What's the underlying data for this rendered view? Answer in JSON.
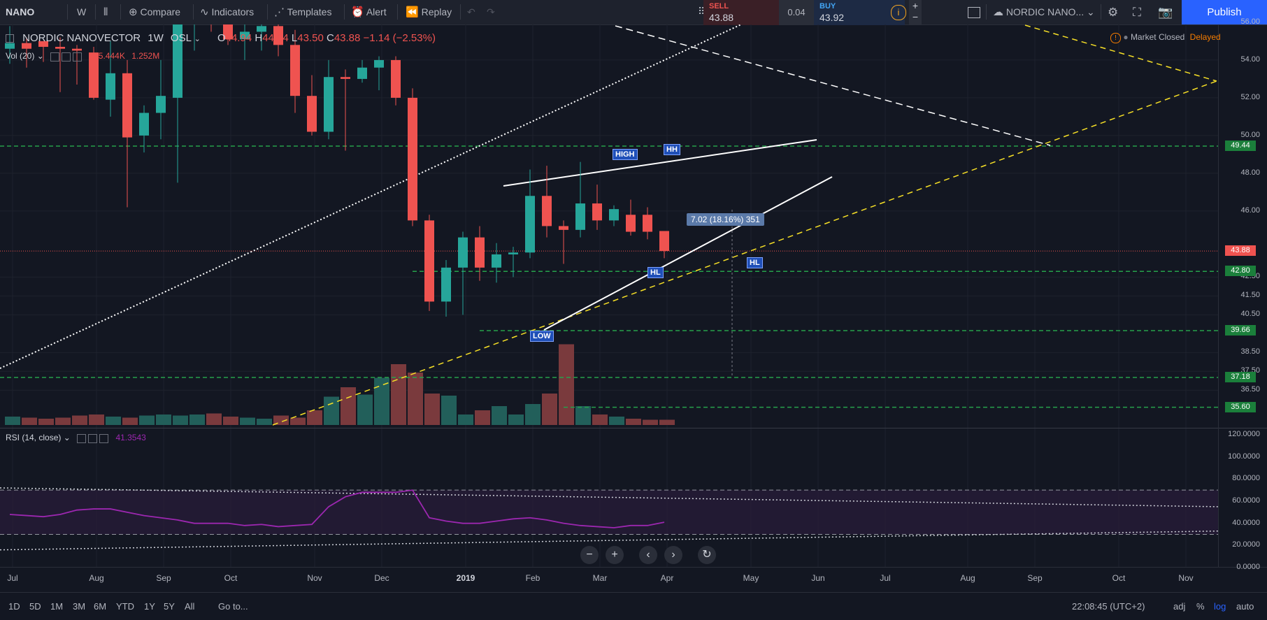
{
  "toolbar": {
    "symbol": "NANO",
    "interval": "W",
    "compare": "Compare",
    "indicators": "Indicators",
    "templates": "Templates",
    "alert": "Alert",
    "replay": "Replay",
    "symbol_search": "NORDIC NANO...",
    "publish": "Publish"
  },
  "trade": {
    "sell_label": "SELL",
    "sell_price": "43.88",
    "spread": "0.04",
    "buy_label": "BUY",
    "buy_price": "43.92"
  },
  "legend": {
    "name": "NORDIC NANOVECTOR",
    "interval": "1W",
    "exchange": "OSL",
    "open_l": "O",
    "open": "44.94",
    "high_l": "H",
    "high": "44.94",
    "low_l": "L",
    "low": "43.50",
    "close_l": "C",
    "close": "43.88",
    "change": "−1.14 (−2.53%)",
    "vol_label": "Vol (20)",
    "vol_value": "265.444K",
    "vol_ma": "1.252M",
    "market_status": "Market Closed",
    "delayed": "Delayed",
    "rsi_label": "RSI (14, close)",
    "rsi_value": "41.3543"
  },
  "price_axis": [
    "56.00",
    "54.00",
    "52.00",
    "50.00",
    "48.00",
    "46.00",
    "42.50",
    "41.50",
    "40.50",
    "38.50",
    "37.50",
    "36.50"
  ],
  "price_tags": [
    {
      "v": "49.44",
      "color": "#1b7f3b"
    },
    {
      "v": "43.88",
      "color": "#ef5350"
    },
    {
      "v": "42.80",
      "color": "#1b7f3b"
    },
    {
      "v": "39.66",
      "color": "#1b7f3b"
    },
    {
      "v": "37.18",
      "color": "#1b7f3b"
    },
    {
      "v": "35.60",
      "color": "#1b7f3b"
    }
  ],
  "rsi_axis": [
    "120.0000",
    "100.0000",
    "80.0000",
    "60.0000",
    "40.0000",
    "20.0000",
    "0.0000"
  ],
  "time_axis": [
    "Jul",
    "Aug",
    "Sep",
    "Oct",
    "Nov",
    "Dec",
    "2019",
    "Feb",
    "Mar",
    "Apr",
    "May",
    "Jun",
    "Jul",
    "Aug",
    "Sep",
    "Oct",
    "Nov"
  ],
  "annotations": {
    "high": "HIGH",
    "hh": "HH",
    "hl1": "HL",
    "hl2": "HL",
    "low": "LOW",
    "measure": "7.02 (18.16%) 351"
  },
  "bottom": {
    "ranges": [
      "1D",
      "5D",
      "1M",
      "3M",
      "6M",
      "YTD",
      "1Y",
      "5Y",
      "All"
    ],
    "goto": "Go to...",
    "time": "22:08:45 (UTC+2)",
    "adj": "adj",
    "percent": "%",
    "log": "log",
    "auto": "auto"
  },
  "colors": {
    "up": "#26a69a",
    "down": "#ef5350",
    "accent": "#2962ff",
    "rsi": "#9c27b0"
  },
  "chart_data": {
    "type": "candlestick",
    "candles": [
      {
        "o": 54.6,
        "h": 55.8,
        "l": 53.8,
        "c": 54.9
      },
      {
        "o": 54.9,
        "h": 55.2,
        "l": 53.6,
        "c": 54.6
      },
      {
        "o": 55.0,
        "h": 55.0,
        "l": 53.9,
        "c": 54.7
      },
      {
        "o": 54.7,
        "h": 55.2,
        "l": 52.3,
        "c": 54.6
      },
      {
        "o": 54.6,
        "h": 54.8,
        "l": 52.7,
        "c": 54.5
      },
      {
        "o": 54.4,
        "h": 54.7,
        "l": 51.9,
        "c": 52.0
      },
      {
        "o": 51.9,
        "h": 55.0,
        "l": 51.0,
        "c": 53.3
      },
      {
        "o": 53.3,
        "h": 54.0,
        "l": 46.2,
        "c": 49.9
      },
      {
        "o": 50.0,
        "h": 51.6,
        "l": 49.1,
        "c": 51.2
      },
      {
        "o": 51.2,
        "h": 54.0,
        "l": 49.8,
        "c": 52.1
      },
      {
        "o": 52.0,
        "h": 56.5,
        "l": 47.5,
        "c": 56.0
      },
      {
        "o": 56.0,
        "h": 58.0,
        "l": 54.5,
        "c": 57.0
      },
      {
        "o": 57.0,
        "h": 57.5,
        "l": 55.5,
        "c": 56.2
      },
      {
        "o": 56.2,
        "h": 57.0,
        "l": 54.8,
        "c": 55.1
      },
      {
        "o": 55.1,
        "h": 56.0,
        "l": 54.0,
        "c": 55.5
      },
      {
        "o": 55.5,
        "h": 56.8,
        "l": 54.5,
        "c": 55.8
      },
      {
        "o": 55.8,
        "h": 56.5,
        "l": 54.2,
        "c": 54.8
      },
      {
        "o": 54.8,
        "h": 55.6,
        "l": 51.2,
        "c": 52.1
      },
      {
        "o": 52.1,
        "h": 53.2,
        "l": 50.0,
        "c": 50.2
      },
      {
        "o": 50.2,
        "h": 54.0,
        "l": 49.8,
        "c": 53.1
      },
      {
        "o": 53.1,
        "h": 53.5,
        "l": 49.2,
        "c": 53.0
      },
      {
        "o": 53.0,
        "h": 54.0,
        "l": 52.8,
        "c": 53.6
      },
      {
        "o": 53.6,
        "h": 54.2,
        "l": 52.4,
        "c": 54.0
      },
      {
        "o": 54.0,
        "h": 54.2,
        "l": 51.6,
        "c": 52.0
      },
      {
        "o": 52.0,
        "h": 52.5,
        "l": 45.2,
        "c": 45.5
      },
      {
        "o": 45.5,
        "h": 45.8,
        "l": 40.7,
        "c": 41.2
      },
      {
        "o": 41.2,
        "h": 43.4,
        "l": 40.4,
        "c": 43.0
      },
      {
        "o": 43.0,
        "h": 44.9,
        "l": 40.5,
        "c": 44.6
      },
      {
        "o": 44.6,
        "h": 45.2,
        "l": 42.3,
        "c": 43.0
      },
      {
        "o": 43.0,
        "h": 44.3,
        "l": 42.2,
        "c": 43.7
      },
      {
        "o": 43.7,
        "h": 44.1,
        "l": 42.5,
        "c": 43.8
      },
      {
        "o": 43.8,
        "h": 48.2,
        "l": 43.5,
        "c": 46.8
      },
      {
        "o": 46.8,
        "h": 48.4,
        "l": 44.6,
        "c": 45.2
      },
      {
        "o": 45.2,
        "h": 45.5,
        "l": 43.2,
        "c": 45.0
      },
      {
        "o": 45.0,
        "h": 48.6,
        "l": 44.6,
        "c": 46.4
      },
      {
        "o": 46.4,
        "h": 47.4,
        "l": 45.0,
        "c": 45.5
      },
      {
        "o": 45.5,
        "h": 46.3,
        "l": 45.2,
        "c": 46.1
      },
      {
        "o": 45.8,
        "h": 46.6,
        "l": 44.7,
        "c": 44.9
      },
      {
        "o": 45.8,
        "h": 46.2,
        "l": 44.5,
        "c": 44.9
      },
      {
        "o": 44.94,
        "h": 44.94,
        "l": 43.5,
        "c": 43.88
      }
    ],
    "rsi": [
      48,
      47,
      46,
      48,
      52,
      53,
      53,
      50,
      47,
      45,
      43,
      40,
      40,
      40,
      38,
      39,
      37,
      38,
      39,
      55,
      64,
      68,
      68,
      68,
      70,
      45,
      42,
      40,
      40,
      42,
      44,
      45,
      43,
      40,
      38,
      37,
      36,
      38,
      38,
      41
    ]
  }
}
